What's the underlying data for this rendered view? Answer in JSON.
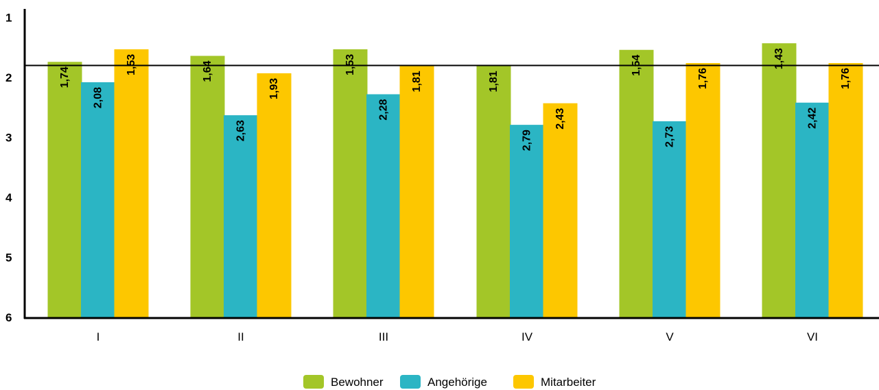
{
  "chart_data": {
    "type": "bar",
    "categories": [
      "I",
      "II",
      "III",
      "IV",
      "V",
      "VI"
    ],
    "series": [
      {
        "name": "Bewohner",
        "color": "#a3c628",
        "values": [
          1.74,
          1.64,
          1.53,
          1.81,
          1.54,
          1.43
        ],
        "labels": [
          "1,74",
          "1,64",
          "1,53",
          "1,81",
          "1,54",
          "1,43"
        ]
      },
      {
        "name": "Angehörige",
        "color": "#2bb5c4",
        "values": [
          2.08,
          2.63,
          2.28,
          2.79,
          2.73,
          2.42
        ],
        "labels": [
          "2,08",
          "2,63",
          "2,28",
          "2,79",
          "2,73",
          "2,42"
        ]
      },
      {
        "name": "Mitarbeiter",
        "color": "#fdc700",
        "values": [
          1.53,
          1.93,
          1.81,
          2.43,
          1.76,
          1.76
        ],
        "labels": [
          "1,53",
          "1,93",
          "1,81",
          "2,43",
          "1,76",
          "1,76"
        ]
      }
    ],
    "yticks": [
      "1",
      "2",
      "3",
      "4",
      "5",
      "6"
    ],
    "ylim": [
      1,
      6
    ],
    "y_inverted": true,
    "reference_line": 1.8,
    "legend_position": "bottom-center",
    "grid": false
  }
}
